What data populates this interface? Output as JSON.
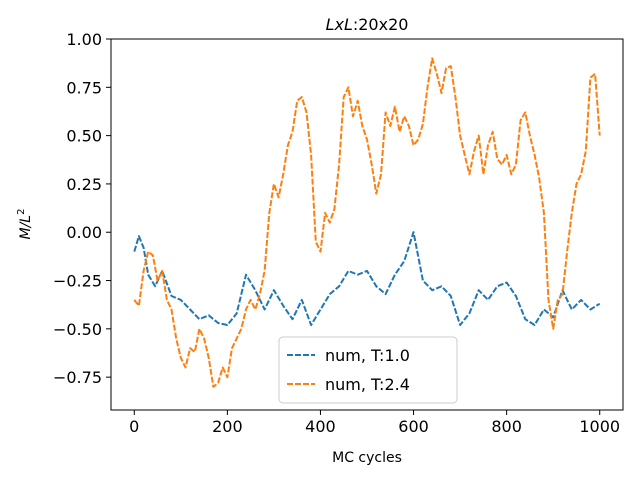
{
  "chart_data": {
    "type": "line",
    "title_parts": {
      "italic": "LxL",
      "plain": ":20x20"
    },
    "xlabel": "MC cycles",
    "ylabel": {
      "main": "M/L",
      "sup": "2"
    },
    "xlim": [
      -50,
      1050
    ],
    "ylim": [
      -0.92,
      1.0
    ],
    "xticks": [
      0,
      200,
      400,
      600,
      800,
      1000
    ],
    "xtick_labels": [
      "0",
      "200",
      "400",
      "600",
      "800",
      "1000"
    ],
    "yticks": [
      -0.75,
      -0.5,
      -0.25,
      0.0,
      0.25,
      0.5,
      0.75,
      1.0
    ],
    "ytick_labels": [
      "−0.75",
      "−0.50",
      "−0.25",
      "0.00",
      "0.25",
      "0.50",
      "0.75",
      "1.00"
    ],
    "grid": false,
    "legend_position": "lower-center",
    "series": [
      {
        "name": "num, T:1.0",
        "color": "#1f77b4",
        "linestyle": "dashed",
        "x": [
          0,
          10,
          20,
          30,
          45,
          60,
          80,
          100,
          120,
          140,
          160,
          180,
          200,
          220,
          240,
          260,
          280,
          300,
          320,
          340,
          360,
          380,
          400,
          420,
          440,
          460,
          480,
          500,
          520,
          540,
          560,
          580,
          600,
          620,
          640,
          660,
          680,
          700,
          720,
          740,
          760,
          780,
          800,
          820,
          840,
          860,
          880,
          900,
          920,
          940,
          960,
          980,
          1000
        ],
        "y": [
          -0.1,
          -0.02,
          -0.08,
          -0.22,
          -0.28,
          -0.2,
          -0.33,
          -0.35,
          -0.4,
          -0.45,
          -0.43,
          -0.47,
          -0.48,
          -0.42,
          -0.22,
          -0.3,
          -0.4,
          -0.3,
          -0.38,
          -0.45,
          -0.35,
          -0.48,
          -0.4,
          -0.32,
          -0.28,
          -0.2,
          -0.22,
          -0.2,
          -0.28,
          -0.32,
          -0.22,
          -0.15,
          0.0,
          -0.25,
          -0.3,
          -0.28,
          -0.33,
          -0.48,
          -0.42,
          -0.3,
          -0.35,
          -0.28,
          -0.26,
          -0.33,
          -0.45,
          -0.48,
          -0.4,
          -0.44,
          -0.3,
          -0.4,
          -0.35,
          -0.4,
          -0.37
        ]
      },
      {
        "name": "num, T:2.4",
        "color": "#ff7f0e",
        "linestyle": "dashed",
        "x": [
          0,
          10,
          20,
          30,
          40,
          50,
          60,
          70,
          80,
          90,
          100,
          110,
          120,
          130,
          140,
          150,
          160,
          170,
          180,
          190,
          200,
          210,
          220,
          230,
          240,
          250,
          260,
          270,
          280,
          290,
          300,
          310,
          320,
          330,
          340,
          350,
          360,
          370,
          380,
          390,
          400,
          410,
          420,
          430,
          440,
          450,
          460,
          470,
          480,
          490,
          500,
          510,
          520,
          530,
          540,
          550,
          560,
          570,
          580,
          590,
          600,
          610,
          620,
          630,
          640,
          650,
          660,
          670,
          680,
          690,
          700,
          710,
          720,
          730,
          740,
          750,
          760,
          770,
          780,
          790,
          800,
          810,
          820,
          830,
          840,
          850,
          860,
          870,
          880,
          890,
          900,
          910,
          920,
          930,
          940,
          950,
          960,
          970,
          980,
          990,
          1000
        ],
        "y": [
          -0.35,
          -0.38,
          -0.2,
          -0.1,
          -0.12,
          -0.25,
          -0.2,
          -0.35,
          -0.4,
          -0.55,
          -0.65,
          -0.7,
          -0.6,
          -0.62,
          -0.5,
          -0.55,
          -0.65,
          -0.8,
          -0.78,
          -0.7,
          -0.75,
          -0.6,
          -0.55,
          -0.5,
          -0.4,
          -0.35,
          -0.4,
          -0.32,
          -0.2,
          0.1,
          0.25,
          0.18,
          0.3,
          0.45,
          0.52,
          0.68,
          0.7,
          0.62,
          0.4,
          -0.05,
          -0.1,
          0.1,
          0.05,
          0.12,
          0.35,
          0.7,
          0.75,
          0.6,
          0.68,
          0.55,
          0.48,
          0.35,
          0.2,
          0.3,
          0.62,
          0.55,
          0.65,
          0.52,
          0.6,
          0.55,
          0.45,
          0.48,
          0.56,
          0.75,
          0.9,
          0.82,
          0.72,
          0.85,
          0.86,
          0.7,
          0.5,
          0.4,
          0.3,
          0.42,
          0.5,
          0.3,
          0.45,
          0.52,
          0.38,
          0.35,
          0.4,
          0.3,
          0.35,
          0.58,
          0.62,
          0.5,
          0.4,
          0.28,
          0.1,
          -0.35,
          -0.5,
          -0.35,
          -0.32,
          -0.1,
          0.1,
          0.25,
          0.3,
          0.42,
          0.8,
          0.82,
          0.5
        ]
      }
    ]
  }
}
